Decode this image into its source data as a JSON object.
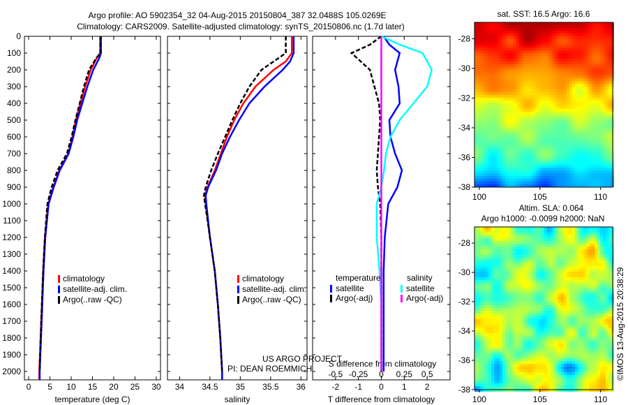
{
  "title_line1": "Argo profile: AO 5902354_32 04-Aug-2015 20150804_387 32.0488S 105.0269E",
  "title_line2": "Climatology: CARS2009. Satellite-adjusted climatology: synTS_20150806.nc (1.7d later)",
  "credit": "©IMOS 13-Aug-2015 20:38:29",
  "project_line1": "US ARGO PROJECT",
  "project_line2": "PI: DEAN ROEMMICH",
  "colors": {
    "climatology": "#ff0000",
    "satellite": "#0000ff",
    "argo": "#000000",
    "sal_satellite": "#00ffff",
    "sal_argo": "#ff00ff"
  },
  "chart_data": [
    {
      "type": "line",
      "name": "temperature",
      "xlabel": "temperature (deg C)",
      "xlim": [
        -1,
        31
      ],
      "ylim": [
        2050,
        0
      ],
      "xticks": [
        "0",
        "5",
        "10",
        "15",
        "20",
        "25",
        "30"
      ],
      "yticks": [
        "0",
        "100",
        "200",
        "300",
        "400",
        "500",
        "600",
        "700",
        "800",
        "900",
        "1000",
        "1100",
        "1200",
        "1300",
        "1400",
        "1500",
        "1600",
        "1700",
        "1800",
        "1900",
        "2000"
      ],
      "depth": [
        0,
        100,
        130,
        200,
        300,
        400,
        500,
        600,
        700,
        800,
        900,
        1000,
        1200,
        1400,
        1600,
        1800,
        2000,
        2050
      ],
      "legend": [
        "climatology",
        "satellite-adj. clim.",
        "Argo(..raw -QC)"
      ],
      "series": [
        {
          "name": "climatology",
          "values": [
            16.8,
            16.8,
            16,
            14.6,
            13.3,
            12.2,
            11.1,
            10.3,
            9.3,
            7.2,
            5.8,
            4.6,
            3.8,
            3.4,
            3.1,
            2.8,
            2.5,
            2.5
          ]
        },
        {
          "name": "satellite-adj. clim.",
          "values": [
            17,
            17,
            16.6,
            15.2,
            13.8,
            12.6,
            11.4,
            10.5,
            9.4,
            7.3,
            5.9,
            4.7,
            3.9,
            3.5,
            3.2,
            2.9,
            2.6,
            2.6
          ]
        },
        {
          "name": "Argo",
          "values": [
            16.9,
            16.9,
            15.9,
            14.2,
            13,
            12,
            11,
            10.1,
            9,
            6.8,
            5.4,
            4.4,
            3.8,
            3.4,
            3.1,
            2.8,
            2.6,
            null
          ]
        }
      ]
    },
    {
      "type": "line",
      "name": "salinity",
      "xlabel": "salinity",
      "xlim": [
        33.8,
        36.1
      ],
      "ylim": [
        2050,
        0
      ],
      "xticks": [
        "34",
        "34.5",
        "35",
        "35.5",
        "36"
      ],
      "depth": [
        0,
        100,
        150,
        200,
        300,
        400,
        500,
        600,
        700,
        800,
        900,
        950,
        1000,
        1200,
        1400,
        1600,
        1800,
        2000,
        2050
      ],
      "legend": [
        "climatology",
        "satellite-adj. clim.",
        "Argo(..raw -QC)"
      ],
      "series": [
        {
          "name": "climatology",
          "values": [
            35.85,
            35.85,
            35.75,
            35.55,
            35.25,
            35.05,
            34.9,
            34.78,
            34.68,
            34.58,
            34.46,
            34.42,
            34.43,
            34.5,
            34.58,
            34.63,
            34.67,
            34.7,
            34.7
          ]
        },
        {
          "name": "satellite-adj. clim.",
          "values": [
            35.88,
            35.88,
            35.82,
            35.7,
            35.4,
            35.15,
            34.98,
            34.83,
            34.7,
            34.6,
            34.47,
            34.43,
            34.44,
            34.5,
            34.58,
            34.63,
            34.67,
            34.7,
            34.7
          ]
        },
        {
          "name": "Argo",
          "values": [
            35.75,
            35.75,
            35.55,
            35.35,
            35.15,
            35,
            34.87,
            34.75,
            34.63,
            34.52,
            34.43,
            34.4,
            34.42,
            34.5,
            34.58,
            34.63,
            34.67,
            34.7,
            null
          ]
        }
      ]
    },
    {
      "type": "line",
      "name": "difference",
      "xlabel": "T difference from climatology",
      "x2label": "S difference from climatology",
      "xlim": [
        -3,
        3
      ],
      "ylim": [
        2050,
        0
      ],
      "xticks": [
        "-2",
        "-1",
        "0",
        "1",
        "2"
      ],
      "x2ticks": [
        "-0.5",
        "-0.25",
        "0",
        "0.25",
        "0.5"
      ],
      "legend_title_t": "temperature",
      "legend_title_s": "salinity",
      "legend": [
        "satellite",
        "Argo(-adj)",
        "satellite",
        "Argo(-adj)"
      ],
      "depth": [
        0,
        50,
        100,
        150,
        200,
        300,
        400,
        500,
        600,
        700,
        800,
        900,
        1000,
        1200,
        1400,
        1600,
        1800,
        2000
      ],
      "series": [
        {
          "name": "T satellite",
          "values": [
            0.1,
            0.35,
            0.8,
            0.7,
            0.6,
            0.75,
            0.8,
            0.35,
            0.4,
            0.6,
            0.9,
            0.7,
            0.3,
            0.15,
            0.1,
            0.1,
            0.1,
            0.1
          ]
        },
        {
          "name": "T Argo(-adj)",
          "values": [
            0,
            -0.5,
            -1.3,
            -0.9,
            -0.5,
            -0.3,
            -0.1,
            -0.05,
            -0.1,
            -0.15,
            -0.2,
            -0.15,
            -0.05,
            0,
            0,
            0,
            0,
            0
          ]
        },
        {
          "name": "S satellite",
          "values": [
            0,
            0.2,
            0.45,
            0.5,
            0.55,
            0.5,
            0.35,
            0.2,
            0.1,
            0.05,
            0.03,
            0,
            -0.05,
            -0.05,
            -0.02,
            0,
            0,
            0
          ]
        },
        {
          "name": "S Argo(-adj)",
          "values": [
            0,
            0,
            0,
            0,
            0,
            0,
            0,
            0,
            0,
            0,
            0,
            0,
            0,
            0,
            0,
            0,
            0,
            0
          ]
        }
      ]
    },
    {
      "type": "heatmap",
      "name": "sst-map",
      "title": "sat. SST: 16.5 Argo: 16.6",
      "xticks": [
        "100",
        "105",
        "110"
      ],
      "yticks": [
        "-28",
        "-30",
        "-32",
        "-34",
        "-36",
        "-38"
      ]
    },
    {
      "type": "heatmap",
      "name": "sla-map",
      "title1": "Altim. SLA: 0.064",
      "title2": "Argo h1000: -0.0099 h2000: NaN",
      "xticks": [
        "100",
        "105",
        "110"
      ],
      "yticks": [
        "-28",
        "-30",
        "-32",
        "-34",
        "-36",
        "-38"
      ]
    }
  ]
}
